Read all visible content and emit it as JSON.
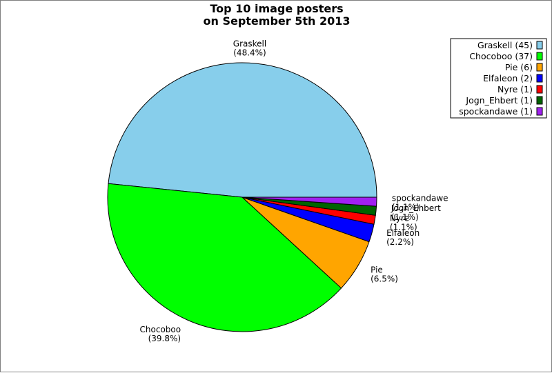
{
  "chart_data": {
    "type": "pie",
    "title": [
      "Top 10 image posters",
      "on September 5th 2013"
    ],
    "slices": [
      {
        "label": "Graskell",
        "count": 45,
        "percent": "48.4%",
        "color": "#87ceeb",
        "legend": "Graskell (45)"
      },
      {
        "label": "Chocoboo",
        "count": 37,
        "percent": "39.8%",
        "color": "#00ff00",
        "legend": "Chocoboo (37)"
      },
      {
        "label": "Pie",
        "count": 6,
        "percent": "6.5%",
        "color": "#ffa500",
        "legend": "Pie (6)"
      },
      {
        "label": "Elfaleon",
        "count": 2,
        "percent": "2.2%",
        "color": "#0000ff",
        "legend": "Elfaleon (2)"
      },
      {
        "label": "Nyre",
        "count": 1,
        "percent": "1.1%",
        "color": "#ff0000",
        "legend": "Nyre (1)"
      },
      {
        "label": "Jogn_Ehbert",
        "count": 1,
        "percent": "1.1%",
        "color": "#006400",
        "legend": "Jogn_Ehbert (1)"
      },
      {
        "label": "spockandawe",
        "count": 1,
        "percent": "1.1%",
        "color": "#a020f0",
        "legend": "spockandawe (1)"
      }
    ],
    "legend_placement": "top-right"
  }
}
